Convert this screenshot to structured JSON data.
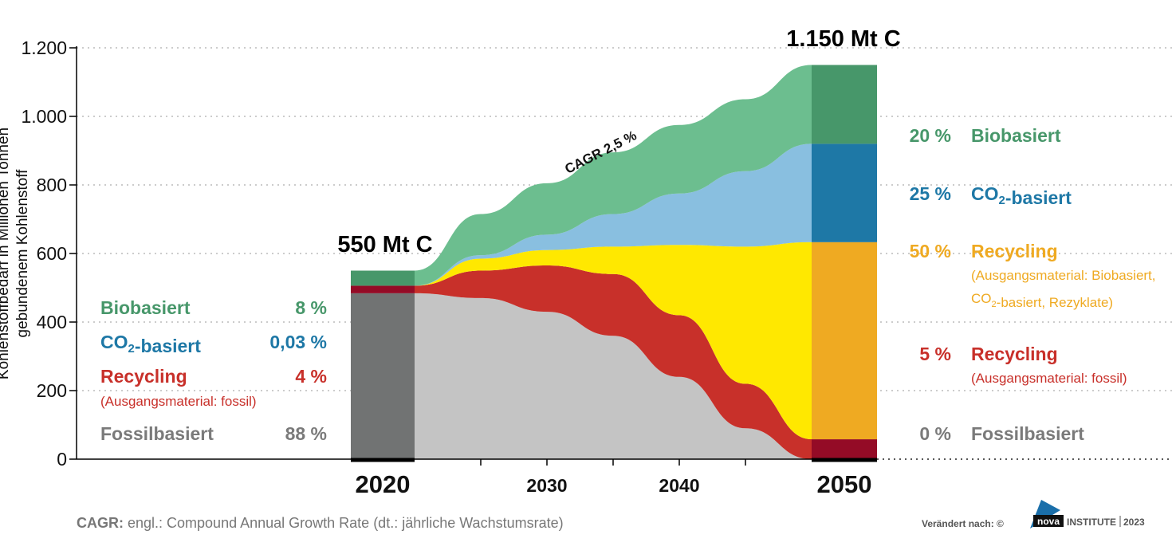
{
  "chart_data": {
    "type": "area",
    "y_axis": {
      "title_line1": "Kohlenstoffbedarf in Millionen Tonnen",
      "title_line2": "gebundenem Kohlenstoff",
      "ylim": [
        0,
        1200
      ],
      "ticks": [
        0,
        200,
        400,
        600,
        800,
        1000,
        1200
      ],
      "tick_labels": [
        "0",
        "200",
        "400",
        "600",
        "800",
        "1.000",
        "1.200"
      ],
      "grid": "dotted"
    },
    "x_axis": {
      "start_year": 2020,
      "end_year": 2050,
      "tick_labels": [
        {
          "year": 2020,
          "label": "2020",
          "size": "large"
        },
        {
          "year": 2030,
          "label": "2030",
          "size": "small"
        },
        {
          "year": 2040,
          "label": "2040",
          "size": "small"
        },
        {
          "year": 2050,
          "label": "2050",
          "size": "large"
        }
      ]
    },
    "totals": [
      {
        "year": 2020,
        "label": "550 Mt C",
        "value": 550
      },
      {
        "year": 2050,
        "label": "1.150 Mt C",
        "value": 1150
      }
    ],
    "growth_annotation": "CAGR 2,5 %",
    "series": [
      {
        "name": "Fossilbasiert",
        "key": "fossil",
        "color_area": "#c4c4c4",
        "color_bar": "#717373",
        "color_text": "#7a7a7a",
        "x": [
          2020,
          2025,
          2030,
          2035,
          2040,
          2045,
          2050
        ],
        "values": [
          484,
          470,
          430,
          360,
          240,
          90,
          0
        ]
      },
      {
        "name": "Recycling (Ausgangsmaterial: fossil)",
        "key": "recycling_fossil",
        "color_area": "#c8302a",
        "color_bar": "#940b26",
        "color_text": "#c8302a",
        "x": [
          2020,
          2025,
          2030,
          2035,
          2040,
          2045,
          2050
        ],
        "values": [
          22,
          80,
          135,
          180,
          180,
          130,
          58
        ]
      },
      {
        "name": "Recycling (Ausgangsmaterial: Biobasiert, CO2-basiert, Rezyklate)",
        "key": "recycling_bio",
        "color_area": "#ffe800",
        "color_bar": "#efaa22",
        "color_text": "#efaa22",
        "x": [
          2020,
          2025,
          2030,
          2035,
          2040,
          2045,
          2050
        ],
        "values": [
          0,
          35,
          45,
          80,
          205,
          400,
          575
        ]
      },
      {
        "name": "CO2-basiert",
        "key": "co2",
        "color_area": "#89bfe0",
        "color_bar": "#1e78a6",
        "color_text": "#1e78a6",
        "x": [
          2020,
          2025,
          2030,
          2035,
          2040,
          2045,
          2050
        ],
        "values": [
          0,
          10,
          45,
          95,
          150,
          220,
          287
        ]
      },
      {
        "name": "Biobasiert",
        "key": "bio",
        "color_area": "#6cbe8f",
        "color_bar": "#47976a",
        "color_text": "#47976a",
        "x": [
          2020,
          2025,
          2030,
          2035,
          2040,
          2045,
          2050
        ],
        "values": [
          44,
          120,
          150,
          180,
          200,
          210,
          230
        ]
      }
    ],
    "legend_2020": [
      {
        "name": "Biobasiert",
        "value_label": "8 %",
        "color": "#47976a"
      },
      {
        "name": "CO₂-basiert",
        "value_label": "0,03 %",
        "color": "#1e78a6"
      },
      {
        "name": "Recycling",
        "sub": "(Ausgangsmaterial: fossil)",
        "value_label": "4 %",
        "color": "#c8302a"
      },
      {
        "name": "Fossilbasiert",
        "value_label": "88 %",
        "color": "#7a7a7a"
      }
    ],
    "legend_2050": [
      {
        "name": "Biobasiert",
        "value_label": "20 %",
        "color": "#47976a"
      },
      {
        "name": "CO₂-basiert",
        "value_label": "25 %",
        "color": "#1e78a6"
      },
      {
        "name": "Recycling",
        "sub": "(Ausgangsmaterial: Biobasiert,",
        "sub2": "CO₂-basiert, Rezyklate)",
        "value_label": "50 %",
        "color": "#efaa22"
      },
      {
        "name": "Recycling",
        "sub": "(Ausgangsmaterial: fossil)",
        "value_label": "5 %",
        "color": "#c8302a"
      },
      {
        "name": "Fossilbasiert",
        "value_label": "0 %",
        "color": "#7a7a7a"
      }
    ]
  },
  "footnote": {
    "bold": "CAGR:",
    "text": " engl.: Compound Annual Growth Rate (dt.: jährliche Wachstumsrate)"
  },
  "credit": {
    "prefix": "Verändert nach: ©",
    "brand": "nova",
    "suffix": "INSTITUTE",
    "year": "2023"
  }
}
